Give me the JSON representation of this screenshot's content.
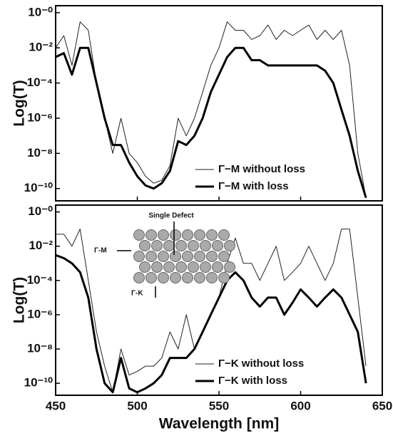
{
  "chart_data": [
    {
      "type": "line",
      "y_label": "Log(T)",
      "yscale": "log",
      "grid": false,
      "legend": "lower right",
      "show_xtick_labels": false,
      "xlim": [
        450,
        650
      ],
      "xticks": [
        450,
        500,
        550,
        600,
        650
      ],
      "ylim": [
        2e-11,
        2.5
      ],
      "yticks": [
        {
          "value": 1,
          "label": "10⁻⁰"
        },
        {
          "value": 0.01,
          "label": "10⁻²"
        },
        {
          "value": 0.0001,
          "label": "10⁻⁴"
        },
        {
          "value": 1e-06,
          "label": "10⁻⁶"
        },
        {
          "value": 1e-08,
          "label": "10⁻⁸"
        },
        {
          "value": 1e-10,
          "label": "10⁻¹⁰"
        }
      ],
      "x": [
        450,
        455,
        460,
        465,
        470,
        475,
        480,
        485,
        490,
        495,
        500,
        505,
        510,
        515,
        520,
        525,
        530,
        535,
        540,
        545,
        550,
        555,
        560,
        565,
        570,
        575,
        580,
        585,
        590,
        595,
        600,
        605,
        610,
        615,
        620,
        625,
        630,
        635,
        640,
        645,
        650
      ],
      "series": [
        {
          "name": "Γ−M without loss",
          "color": "#222222",
          "width": 1,
          "values": [
            0.01,
            0.05,
            0.001,
            0.3,
            0.1,
            0.0001,
            1e-06,
            1e-08,
            1e-06,
            1e-08,
            3e-09,
            5e-10,
            2e-10,
            3e-10,
            2e-09,
            1e-06,
            1e-07,
            1e-06,
            3e-05,
            0.001,
            0.01,
            0.3,
            0.1,
            0.1,
            0.03,
            0.05,
            0.2,
            0.03,
            0.1,
            0.05,
            0.1,
            0.2,
            0.03,
            0.1,
            0.03,
            0.1,
            0.001,
            1e-08,
            3e-11,
            null,
            null
          ]
        },
        {
          "name": "Γ−M with loss",
          "color": "#000000",
          "width": 3,
          "values": [
            0.003,
            0.005,
            0.0003,
            0.01,
            0.01,
            0.0001,
            1e-06,
            3e-08,
            3e-08,
            3e-09,
            5e-10,
            1.5e-10,
            1e-10,
            2e-10,
            1e-09,
            5e-08,
            3e-08,
            1e-07,
            1e-06,
            3e-05,
            0.0003,
            0.003,
            0.01,
            0.01,
            0.002,
            0.002,
            0.001,
            0.001,
            0.001,
            0.001,
            0.001,
            0.001,
            0.001,
            0.0005,
            0.0001,
            3e-06,
            1e-07,
            1e-09,
            3e-11,
            null,
            null
          ]
        }
      ]
    },
    {
      "type": "line",
      "y_label": "Log(T)",
      "x_label": "Wavelength [nm]",
      "yscale": "log",
      "grid": false,
      "legend": "lower right",
      "show_xtick_labels": true,
      "annotations": [
        "Single Defect",
        "Γ-M",
        "Γ-K"
      ],
      "xlim": [
        450,
        650
      ],
      "xticks": [
        450,
        500,
        550,
        600,
        650
      ],
      "ylim": [
        2e-11,
        2.5
      ],
      "yticks": [
        {
          "value": 1,
          "label": "10⁻⁰"
        },
        {
          "value": 0.01,
          "label": "10⁻²"
        },
        {
          "value": 0.0001,
          "label": "10⁻⁴"
        },
        {
          "value": 1e-06,
          "label": "10⁻⁶"
        },
        {
          "value": 1e-08,
          "label": "10⁻⁸"
        },
        {
          "value": 1e-10,
          "label": "10⁻¹⁰"
        }
      ],
      "x": [
        450,
        455,
        460,
        465,
        470,
        475,
        480,
        485,
        490,
        495,
        500,
        505,
        510,
        515,
        520,
        525,
        530,
        535,
        540,
        545,
        550,
        555,
        560,
        565,
        570,
        575,
        580,
        585,
        590,
        595,
        600,
        605,
        610,
        615,
        620,
        625,
        630,
        635,
        640,
        645,
        650
      ],
      "series": [
        {
          "name": "Γ−K without loss",
          "color": "#222222",
          "width": 1,
          "values": [
            0.05,
            0.05,
            0.01,
            0.1,
            0.0001,
            1e-07,
            1e-09,
            3e-11,
            1e-08,
            3e-10,
            5e-10,
            1e-09,
            1e-09,
            3e-09,
            1e-07,
            1e-08,
            1e-06,
            1e-08,
            1e-07,
            1e-06,
            1e-05,
            0.001,
            0.03,
            0.001,
            0.001,
            0.0001,
            0.001,
            0.01,
            0.0001,
            0.0003,
            0.001,
            0.01,
            0.001,
            0.0001,
            0.001,
            0.1,
            0.1,
            1e-05,
            1e-09,
            null,
            null
          ]
        },
        {
          "name": "Γ−K with loss",
          "color": "#000000",
          "width": 3,
          "values": [
            0.003,
            0.002,
            0.001,
            0.0003,
            1e-05,
            1e-08,
            1e-10,
            3e-11,
            3e-09,
            5e-11,
            3e-11,
            5e-11,
            1e-10,
            3e-10,
            3e-09,
            3e-09,
            3e-09,
            1e-08,
            1e-07,
            1e-06,
            1e-05,
            0.0001,
            0.0003,
            0.0001,
            1e-05,
            3e-06,
            1e-05,
            1e-05,
            1e-06,
            5e-06,
            3e-05,
            1e-05,
            3e-06,
            1e-05,
            3e-05,
            1e-05,
            1e-06,
            1e-07,
            1e-10,
            null,
            null
          ]
        }
      ]
    }
  ]
}
